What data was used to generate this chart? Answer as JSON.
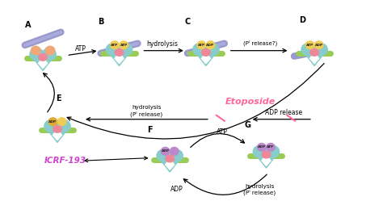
{
  "background_color": "#ffffff",
  "label_A": "A",
  "label_B": "B",
  "label_C": "C",
  "label_D": "D",
  "label_E": "E",
  "label_F": "F",
  "label_G": "G",
  "text_ATP": "ATP",
  "text_hydrolysis": "hydrolysis",
  "text_Pi_release_q": "(Pᴵ release?)",
  "text_hydrolysis_Pi": "hydrolysis\n(Pᴵ release)",
  "text_ADP_release": "ADP release",
  "text_ATP2": "ATP",
  "text_ADP2": "ADP",
  "text_hydrolysis_Pi2": "hydrolysis\n(Pᴵ release)",
  "text_etoposide": "Etoposide",
  "text_icrf": "ICRF-193",
  "col_teal": "#88cccc",
  "col_teal_light": "#aadddd",
  "col_dna": "#9999cc",
  "col_arm": "#99cc55",
  "col_yellow": "#eecc55",
  "col_adp": "#ddaa33",
  "col_pink": "#ee8899",
  "col_orange": "#f0a878",
  "col_purple": "#bb88cc",
  "col_etoposide": "#ff6699",
  "col_icrf": "#cc44cc",
  "col_white": "#ffffff"
}
